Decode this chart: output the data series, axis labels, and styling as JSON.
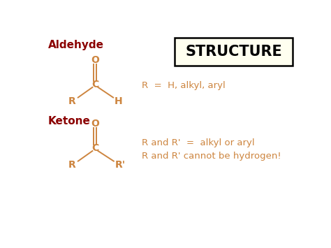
{
  "bg_color": "#ffffff",
  "aldehyde_label": "Aldehyde",
  "ketone_label": "Ketone",
  "structure_title": "STRUCTURE",
  "structure_box_bg": "#fffff0",
  "structure_box_edge": "#000000",
  "label_color": "#8b0000",
  "struct_color": "#cd853f",
  "aldehyde_desc": "R  =  H, alkyl, aryl",
  "ketone_desc1": "R and R'  =  alkyl or aryl",
  "ketone_desc2": "R and R' cannot be hydrogen!",
  "desc_color": "#cd853f",
  "title_fontsize": 15,
  "label_fontsize": 11,
  "struct_fontsize": 10,
  "desc_fontsize": 9.5,
  "xlim": [
    0,
    10
  ],
  "ylim": [
    0,
    7.5
  ]
}
